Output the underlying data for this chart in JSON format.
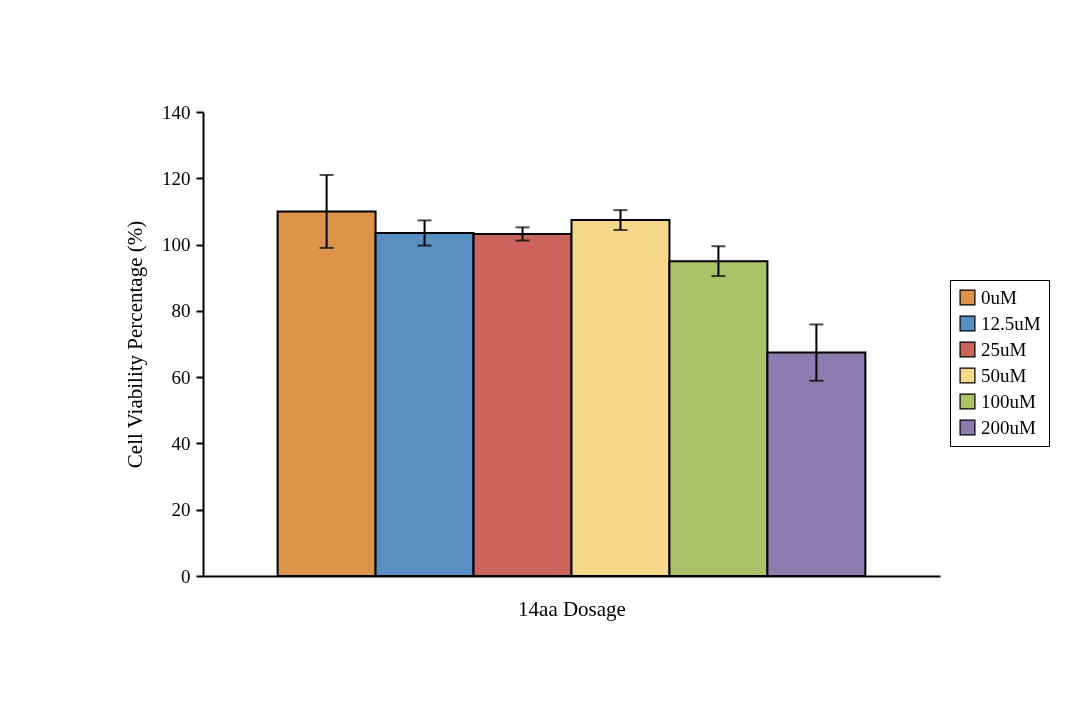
{
  "chart_data": {
    "type": "bar",
    "xlabel": "14aa Dosage",
    "ylabel": "Cell Viability Percentage (%)",
    "categories": [
      null
    ],
    "series": [
      {
        "name": "0uM",
        "color": "#dd934a",
        "values": [
          110
        ],
        "errors": [
          11
        ]
      },
      {
        "name": "12.5uM",
        "color": "#5a8fc3",
        "values": [
          103.5
        ],
        "errors": [
          3.8
        ]
      },
      {
        "name": "25uM",
        "color": "#cb645c",
        "values": [
          103.2
        ],
        "errors": [
          2
        ]
      },
      {
        "name": "50uM",
        "color": "#f5d88a",
        "values": [
          107.4
        ],
        "errors": [
          3
        ]
      },
      {
        "name": "100uM",
        "color": "#aac368",
        "values": [
          95
        ],
        "errors": [
          4.5
        ]
      },
      {
        "name": "200uM",
        "color": "#8e7bb0",
        "values": [
          67.4
        ],
        "errors": [
          8.5
        ]
      }
    ],
    "ylim": [
      0,
      140
    ],
    "yticks": [
      0,
      20,
      40,
      60,
      80,
      100,
      120,
      140
    ],
    "grid": false,
    "legend": "right",
    "tick_labels": "y"
  }
}
